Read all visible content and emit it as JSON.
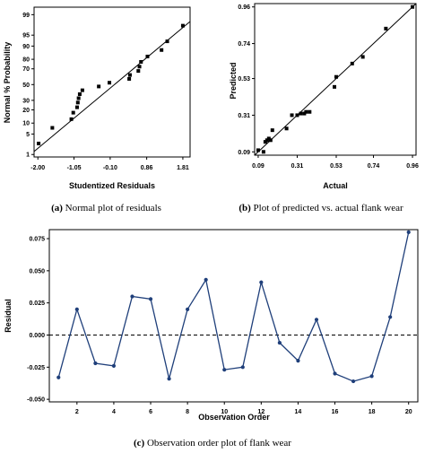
{
  "chart_data": [
    {
      "type": "scatter",
      "caption_id": "(a)",
      "caption_text": "Normal plot of residuals",
      "xlabel": "Studentized Residuals",
      "ylabel": "Normal % Probability",
      "x_ticks": [
        "-2.00",
        "-1.05",
        "-0.10",
        "0.86",
        "1.81"
      ],
      "x_tick_values": [
        -2.0,
        -1.05,
        -0.1,
        0.86,
        1.81
      ],
      "y_ticks": [
        "1",
        "5",
        "10",
        "20",
        "30",
        "50",
        "70",
        "80",
        "90",
        "95",
        "99"
      ],
      "y_tick_values": [
        1,
        5,
        10,
        20,
        30,
        50,
        70,
        80,
        90,
        95,
        99
      ],
      "y_scale": "normal-probability",
      "xlim": [
        -2.1,
        2.0
      ],
      "points": [
        {
          "x": -1.98,
          "y": 2.5
        },
        {
          "x": -1.62,
          "y": 7.5
        },
        {
          "x": -1.12,
          "y": 12.5
        },
        {
          "x": -1.07,
          "y": 17.5
        },
        {
          "x": -0.97,
          "y": 22.5
        },
        {
          "x": -0.95,
          "y": 27.5
        },
        {
          "x": -0.93,
          "y": 32.5
        },
        {
          "x": -0.9,
          "y": 37.5
        },
        {
          "x": -0.83,
          "y": 42.5
        },
        {
          "x": -0.4,
          "y": 47.5
        },
        {
          "x": -0.12,
          "y": 52.5
        },
        {
          "x": 0.4,
          "y": 57.5
        },
        {
          "x": 0.42,
          "y": 62.5
        },
        {
          "x": 0.64,
          "y": 67.5
        },
        {
          "x": 0.67,
          "y": 72.5
        },
        {
          "x": 0.71,
          "y": 77.5
        },
        {
          "x": 0.88,
          "y": 82.5
        },
        {
          "x": 1.25,
          "y": 87.5
        },
        {
          "x": 1.4,
          "y": 92.5
        },
        {
          "x": 1.81,
          "y": 97.5
        }
      ],
      "fit_line": [
        [
          -2.1,
          1.3
        ],
        [
          2.0,
          98.2
        ]
      ]
    },
    {
      "type": "scatter",
      "caption_id": "(b)",
      "caption_text": "Plot of predicted vs. actual flank wear",
      "xlabel": "Actual",
      "ylabel": "Predicted",
      "x_ticks": [
        "0.09",
        "0.31",
        "0.53",
        "0.74",
        "0.96"
      ],
      "x_tick_values": [
        0.09,
        0.31,
        0.53,
        0.74,
        0.96
      ],
      "y_ticks": [
        "0.09",
        "0.31",
        "0.53",
        "0.74",
        "0.96"
      ],
      "y_tick_values": [
        0.09,
        0.31,
        0.53,
        0.74,
        0.96
      ],
      "xlim": [
        0.07,
        0.98
      ],
      "ylim": [
        0.07,
        0.98
      ],
      "points": [
        {
          "x": 0.09,
          "y": 0.1
        },
        {
          "x": 0.12,
          "y": 0.09
        },
        {
          "x": 0.13,
          "y": 0.15
        },
        {
          "x": 0.14,
          "y": 0.16
        },
        {
          "x": 0.15,
          "y": 0.17
        },
        {
          "x": 0.16,
          "y": 0.16
        },
        {
          "x": 0.17,
          "y": 0.22
        },
        {
          "x": 0.25,
          "y": 0.23
        },
        {
          "x": 0.28,
          "y": 0.31
        },
        {
          "x": 0.31,
          "y": 0.31
        },
        {
          "x": 0.33,
          "y": 0.32
        },
        {
          "x": 0.35,
          "y": 0.32
        },
        {
          "x": 0.36,
          "y": 0.33
        },
        {
          "x": 0.38,
          "y": 0.33
        },
        {
          "x": 0.52,
          "y": 0.48
        },
        {
          "x": 0.53,
          "y": 0.54
        },
        {
          "x": 0.62,
          "y": 0.62
        },
        {
          "x": 0.68,
          "y": 0.66
        },
        {
          "x": 0.81,
          "y": 0.83
        },
        {
          "x": 0.96,
          "y": 0.96
        }
      ],
      "fit_line": [
        [
          0.07,
          0.07
        ],
        [
          0.98,
          0.98
        ]
      ]
    },
    {
      "type": "line",
      "caption_id": "(c)",
      "caption_text": "Observation order plot of flank wear",
      "xlabel": "Observation Order",
      "ylabel": "Residual",
      "x_ticks": [
        "2",
        "4",
        "6",
        "8",
        "10",
        "12",
        "14",
        "16",
        "18",
        "20"
      ],
      "x_tick_values": [
        2,
        4,
        6,
        8,
        10,
        12,
        14,
        16,
        18,
        20
      ],
      "y_ticks": [
        "0.075",
        "0.050",
        "0.025",
        "0.000",
        "-0.025",
        "-0.050"
      ],
      "y_tick_values": [
        0.075,
        0.05,
        0.025,
        0.0,
        -0.025,
        -0.05
      ],
      "xlim": [
        0.5,
        20.5
      ],
      "ylim": [
        -0.052,
        0.082
      ],
      "reference_line": 0.0,
      "x": [
        1,
        2,
        3,
        4,
        5,
        6,
        7,
        8,
        9,
        10,
        11,
        12,
        13,
        14,
        15,
        16,
        17,
        18,
        19,
        20
      ],
      "values": [
        -0.033,
        0.02,
        -0.022,
        -0.024,
        0.03,
        0.028,
        -0.034,
        0.02,
        0.043,
        -0.027,
        -0.025,
        0.041,
        -0.006,
        -0.02,
        0.012,
        -0.03,
        -0.036,
        -0.032,
        0.014,
        0.08
      ],
      "line_color": "#1f3f7a"
    }
  ]
}
